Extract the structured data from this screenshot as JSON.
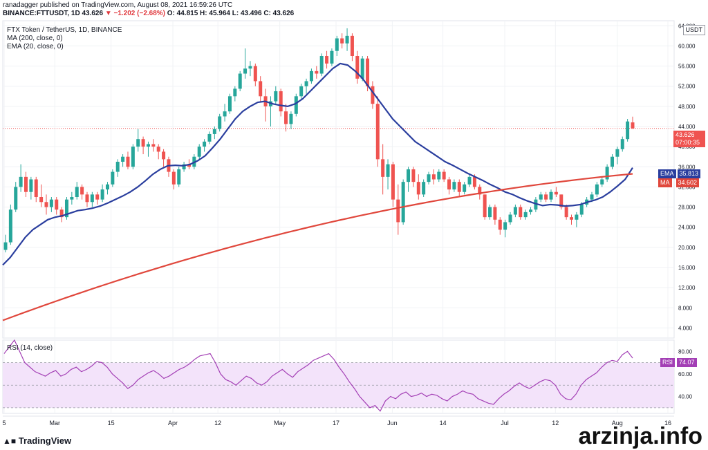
{
  "header": {
    "published_line": "ranadagger published on TradingView.com, August 08, 2021 16:59:26 UTC",
    "symbol": "BINANCE:FTTUSDT, 1D",
    "last": "43.626",
    "change": "▼ −1.202 (−2.68%)",
    "ohlc": "O: 44.815 H: 45.964 L: 43.496 C: 43.626"
  },
  "legend": {
    "title": "FTX Token / TetherUS, 1D, BINANCE",
    "ma": "MA (200, close, 0)",
    "ema": "EMA (20, close, 0)"
  },
  "rsi_legend": "RSI (14, close)",
  "badges": {
    "currency": "USDT",
    "last_price": "43.626",
    "countdown": "07:00:35",
    "ema_label": "EMA",
    "ema_value": "35.813",
    "ma_label": "MA",
    "ma_value": "34.602",
    "rsi_label": "RSI",
    "rsi_value": "74.07"
  },
  "footer": {
    "logo": "TradingView",
    "watermark": "arzinja.info"
  },
  "colors": {
    "up": "#26a69a",
    "down": "#ef5350",
    "ema": "#2a3e9e",
    "ma": "#e0473c",
    "rsi": "#a33fb5",
    "rsi_band": "#f3e3fa"
  },
  "chart_data": {
    "type": "candlestick",
    "price_axis": {
      "ticks": [
        "64.000",
        "60.000",
        "56.000",
        "52.000",
        "48.000",
        "44.000",
        "40.000",
        "36.000",
        "32.000",
        "28.000",
        "24.000",
        "20.000",
        "16.000",
        "12.000",
        "8.000",
        "4.000"
      ],
      "range": [
        2,
        65
      ]
    },
    "time_axis": {
      "ticks": [
        "5",
        "Mar",
        "15",
        "Apr",
        "12",
        "May",
        "17",
        "Jun",
        "14",
        "Jul",
        "12",
        "Aug",
        "16"
      ]
    },
    "rsi_axis": {
      "ticks": [
        "80.00",
        "60.00",
        "40.00"
      ],
      "range": [
        25,
        90
      ],
      "band": [
        30,
        70
      ]
    },
    "candles": [
      [
        19.5,
        22.5,
        19.0,
        21.0
      ],
      [
        21.0,
        28.5,
        20.5,
        27.5
      ],
      [
        27.5,
        33.0,
        27.0,
        32.0
      ],
      [
        32.0,
        36.5,
        31.0,
        34.0
      ],
      [
        34.0,
        35.0,
        30.0,
        31.0
      ],
      [
        31.0,
        34.0,
        29.5,
        33.5
      ],
      [
        33.5,
        34.0,
        29.0,
        30.0
      ],
      [
        30.0,
        32.5,
        28.0,
        29.0
      ],
      [
        29.0,
        30.5,
        26.5,
        28.0
      ],
      [
        28.0,
        30.0,
        27.0,
        29.5
      ],
      [
        29.5,
        30.0,
        26.5,
        27.5
      ],
      [
        27.5,
        28.0,
        25.0,
        26.0
      ],
      [
        26.0,
        30.0,
        25.5,
        29.5
      ],
      [
        29.5,
        31.0,
        28.5,
        30.0
      ],
      [
        30.0,
        33.0,
        29.5,
        32.0
      ],
      [
        32.0,
        32.5,
        29.5,
        30.5
      ],
      [
        30.5,
        31.0,
        28.0,
        29.0
      ],
      [
        29.0,
        31.0,
        28.0,
        30.5
      ],
      [
        30.5,
        31.0,
        28.5,
        29.5
      ],
      [
        29.5,
        32.5,
        29.0,
        31.5
      ],
      [
        31.5,
        33.0,
        30.5,
        32.5
      ],
      [
        32.5,
        35.5,
        32.0,
        35.0
      ],
      [
        35.0,
        37.5,
        34.0,
        37.0
      ],
      [
        37.0,
        38.5,
        36.0,
        38.0
      ],
      [
        38.0,
        39.0,
        35.5,
        36.0
      ],
      [
        36.0,
        40.5,
        35.5,
        40.0
      ],
      [
        40.0,
        43.5,
        39.0,
        41.5
      ],
      [
        41.5,
        42.0,
        38.5,
        40.0
      ],
      [
        40.0,
        41.0,
        38.0,
        40.5
      ],
      [
        40.5,
        41.5,
        39.0,
        40.0
      ],
      [
        40.0,
        40.5,
        37.5,
        39.0
      ],
      [
        39.0,
        39.5,
        36.0,
        37.5
      ],
      [
        37.5,
        38.0,
        34.0,
        35.0
      ],
      [
        35.0,
        35.5,
        31.5,
        32.5
      ],
      [
        32.5,
        36.0,
        32.0,
        35.5
      ],
      [
        35.5,
        37.0,
        35.0,
        36.5
      ],
      [
        36.5,
        37.5,
        35.5,
        36.0
      ],
      [
        36.0,
        38.5,
        35.5,
        38.0
      ],
      [
        38.0,
        40.5,
        37.5,
        40.0
      ],
      [
        40.0,
        41.5,
        39.0,
        41.0
      ],
      [
        41.0,
        43.0,
        40.5,
        42.5
      ],
      [
        42.5,
        44.0,
        41.5,
        43.5
      ],
      [
        43.5,
        46.5,
        43.0,
        46.0
      ],
      [
        46.0,
        48.5,
        45.0,
        47.0
      ],
      [
        47.0,
        50.5,
        46.5,
        50.0
      ],
      [
        50.0,
        52.0,
        49.0,
        51.5
      ],
      [
        51.5,
        55.0,
        51.0,
        54.5
      ],
      [
        54.5,
        59.5,
        53.5,
        55.5
      ],
      [
        55.5,
        57.0,
        54.0,
        56.0
      ],
      [
        56.0,
        56.5,
        52.0,
        53.0
      ],
      [
        53.0,
        54.0,
        49.0,
        50.0
      ],
      [
        50.0,
        51.5,
        45.0,
        48.0
      ],
      [
        48.0,
        50.0,
        44.0,
        49.0
      ],
      [
        49.0,
        52.0,
        48.5,
        51.0
      ],
      [
        51.0,
        51.5,
        46.0,
        47.0
      ],
      [
        47.0,
        48.5,
        43.0,
        44.5
      ],
      [
        44.5,
        47.0,
        43.5,
        46.5
      ],
      [
        46.5,
        50.5,
        46.0,
        50.0
      ],
      [
        50.0,
        52.5,
        49.5,
        52.0
      ],
      [
        52.0,
        53.5,
        50.5,
        53.0
      ],
      [
        53.0,
        55.5,
        52.5,
        55.0
      ],
      [
        55.0,
        56.0,
        53.5,
        54.5
      ],
      [
        54.5,
        58.5,
        54.0,
        58.0
      ],
      [
        58.0,
        59.0,
        55.5,
        56.5
      ],
      [
        56.5,
        59.5,
        56.0,
        59.0
      ],
      [
        59.0,
        62.0,
        58.0,
        61.5
      ],
      [
        61.5,
        62.5,
        59.5,
        60.5
      ],
      [
        60.5,
        63.5,
        59.0,
        62.0
      ],
      [
        62.0,
        62.5,
        57.0,
        58.0
      ],
      [
        58.0,
        59.0,
        52.5,
        53.5
      ],
      [
        53.5,
        58.0,
        53.0,
        57.5
      ],
      [
        57.5,
        58.0,
        51.0,
        52.0
      ],
      [
        52.0,
        53.0,
        47.5,
        48.5
      ],
      [
        48.5,
        50.0,
        36.0,
        37.5
      ],
      [
        37.5,
        40.5,
        30.5,
        34.0
      ],
      [
        34.0,
        37.5,
        31.5,
        36.5
      ],
      [
        36.5,
        37.0,
        28.0,
        29.5
      ],
      [
        29.5,
        32.5,
        22.5,
        25.0
      ],
      [
        25.0,
        33.5,
        24.5,
        33.0
      ],
      [
        33.0,
        36.0,
        31.0,
        35.5
      ],
      [
        35.5,
        36.0,
        32.0,
        33.0
      ],
      [
        33.0,
        34.5,
        29.5,
        30.5
      ],
      [
        30.5,
        33.5,
        30.0,
        33.0
      ],
      [
        33.0,
        35.0,
        32.5,
        34.5
      ],
      [
        34.5,
        35.5,
        32.5,
        33.5
      ],
      [
        33.5,
        35.5,
        33.0,
        35.0
      ],
      [
        35.0,
        35.5,
        33.0,
        33.5
      ],
      [
        33.5,
        34.0,
        30.5,
        31.5
      ],
      [
        31.5,
        33.5,
        31.0,
        33.0
      ],
      [
        33.0,
        33.5,
        30.0,
        31.0
      ],
      [
        31.0,
        33.0,
        30.5,
        32.5
      ],
      [
        32.5,
        34.5,
        32.0,
        34.0
      ],
      [
        34.0,
        34.5,
        31.5,
        32.0
      ],
      [
        32.0,
        32.5,
        29.5,
        30.5
      ],
      [
        30.5,
        30.5,
        25.5,
        26.0
      ],
      [
        26.0,
        28.5,
        25.5,
        28.0
      ],
      [
        28.0,
        28.5,
        24.5,
        25.5
      ],
      [
        25.5,
        26.0,
        22.5,
        23.5
      ],
      [
        23.5,
        25.5,
        22.0,
        25.0
      ],
      [
        25.0,
        27.0,
        24.5,
        26.5
      ],
      [
        26.5,
        28.5,
        26.0,
        28.0
      ],
      [
        28.0,
        28.5,
        25.5,
        26.0
      ],
      [
        26.0,
        27.5,
        25.5,
        27.0
      ],
      [
        27.0,
        28.0,
        26.5,
        27.5
      ],
      [
        27.5,
        30.0,
        27.0,
        29.5
      ],
      [
        29.5,
        31.0,
        29.0,
        30.5
      ],
      [
        30.5,
        31.0,
        29.0,
        29.5
      ],
      [
        29.5,
        31.5,
        29.0,
        31.0
      ],
      [
        31.0,
        32.0,
        30.0,
        30.5
      ],
      [
        30.5,
        30.5,
        27.5,
        28.0
      ],
      [
        28.0,
        28.5,
        25.5,
        26.0
      ],
      [
        26.0,
        26.5,
        24.5,
        25.5
      ],
      [
        25.5,
        27.0,
        24.0,
        26.5
      ],
      [
        26.5,
        29.0,
        26.0,
        28.5
      ],
      [
        28.5,
        30.0,
        28.0,
        29.5
      ],
      [
        29.5,
        31.0,
        29.0,
        30.5
      ],
      [
        30.5,
        33.0,
        30.0,
        32.5
      ],
      [
        32.5,
        34.0,
        32.0,
        33.5
      ],
      [
        33.5,
        36.5,
        33.0,
        36.0
      ],
      [
        36.0,
        38.5,
        35.5,
        38.0
      ],
      [
        38.0,
        40.0,
        36.5,
        39.5
      ],
      [
        39.5,
        42.0,
        39.0,
        41.5
      ],
      [
        41.5,
        45.5,
        41.0,
        45.0
      ],
      [
        44.815,
        45.964,
        43.496,
        43.626
      ]
    ],
    "ema20": [
      16.5,
      18.0,
      20.0,
      22.0,
      23.5,
      24.5,
      25.5,
      26.0,
      26.3,
      26.8,
      27.3,
      27.5,
      27.8,
      28.2,
      28.8,
      29.5,
      30.2,
      31.0,
      32.0,
      33.2,
      34.5,
      35.5,
      36.2,
      36.3,
      36.2,
      36.5,
      37.2,
      38.2,
      39.8,
      41.5,
      43.5,
      45.5,
      47.0,
      48.0,
      48.8,
      49.0,
      48.5,
      48.2,
      48.0,
      48.5,
      49.5,
      51.0,
      52.5,
      54.0,
      55.5,
      56.5,
      56.2,
      55.0,
      53.5,
      51.5,
      49.5,
      47.5,
      45.5,
      44.0,
      42.5,
      41.0,
      40.0,
      39.0,
      38.0,
      37.0,
      36.3,
      35.5,
      34.7,
      34.0,
      33.3,
      32.5,
      31.8,
      31.0,
      30.5,
      29.8,
      29.2,
      28.7,
      28.3,
      28.5,
      28.4,
      28.2,
      28.3,
      28.5,
      29.0,
      29.4,
      30.0,
      31.0,
      32.2,
      33.5,
      35.813
    ],
    "ma200": [
      5.5,
      34.602
    ],
    "rsi14": [
      78,
      84,
      90,
      80,
      70,
      66,
      62,
      60,
      58,
      61,
      63,
      58,
      60,
      64,
      66,
      62,
      64,
      67,
      71,
      70,
      66,
      60,
      56,
      52,
      47,
      50,
      55,
      58,
      61,
      63,
      60,
      56,
      58,
      61,
      64,
      66,
      69,
      73,
      76,
      77,
      78,
      70,
      60,
      55,
      53,
      50,
      54,
      58,
      56,
      52,
      50,
      53,
      58,
      61,
      64,
      60,
      57,
      62,
      65,
      68,
      72,
      74,
      76,
      78,
      73,
      66,
      60,
      53,
      47,
      40,
      35,
      30,
      32,
      27,
      36,
      40,
      38,
      42,
      44,
      40,
      41,
      43,
      40,
      42,
      41,
      38,
      36,
      40,
      42,
      45,
      43,
      42,
      38,
      36,
      34,
      33,
      38,
      42,
      45,
      49,
      52,
      49,
      47,
      50,
      53,
      55,
      54,
      50,
      42,
      38,
      37,
      42,
      50,
      55,
      58,
      61,
      66,
      70,
      72,
      71,
      77,
      80,
      74.07
    ]
  }
}
